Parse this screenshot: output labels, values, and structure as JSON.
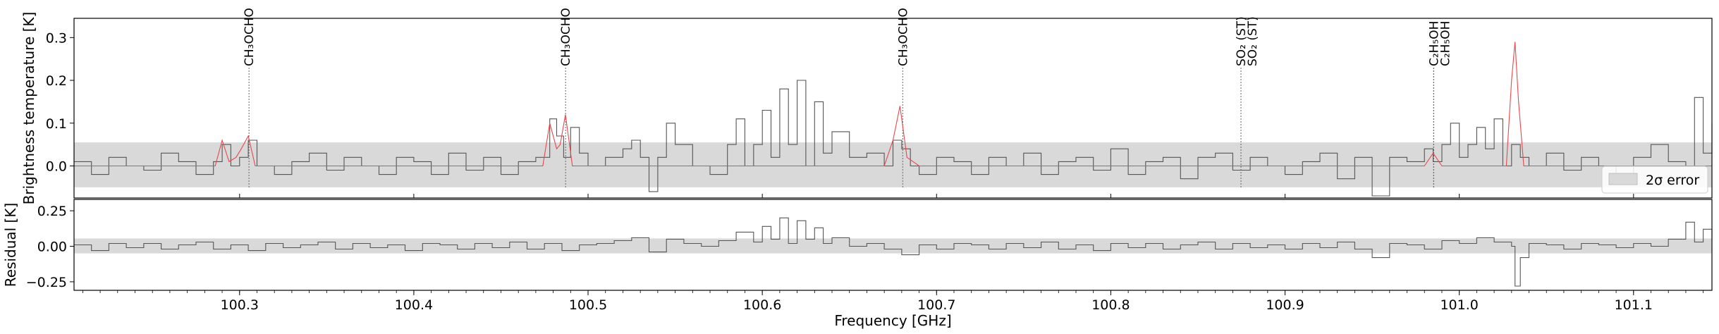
{
  "chart_data": [
    {
      "panel": "spectrum",
      "type": "line",
      "xlabel": "",
      "ylabel": "Brightness temperature [K]",
      "xlim": [
        100.205,
        101.145
      ],
      "ylim": [
        -0.075,
        0.345
      ],
      "yticks": [
        0.0,
        0.1,
        0.2,
        0.3
      ],
      "ytick_labels": [
        "0.0",
        "0.1",
        "0.2",
        "0.3"
      ],
      "error_band": {
        "label": "2σ error",
        "low": -0.05,
        "high": 0.055,
        "color": "#d9d9d9"
      },
      "legend": {
        "position": "bottom-right",
        "entries": [
          "2σ error"
        ]
      },
      "series": [
        {
          "role": "observed",
          "style": "steps",
          "color": "#555555",
          "x": [
            100.205,
            100.215,
            100.225,
            100.235,
            100.245,
            100.255,
            100.265,
            100.275,
            100.285,
            100.29,
            100.295,
            100.3,
            100.305,
            100.31,
            100.32,
            100.33,
            100.34,
            100.35,
            100.36,
            100.37,
            100.38,
            100.39,
            100.4,
            100.41,
            100.42,
            100.43,
            100.44,
            100.45,
            100.46,
            100.47,
            100.478,
            100.482,
            100.486,
            100.49,
            100.495,
            100.5,
            100.51,
            100.52,
            100.525,
            100.53,
            100.535,
            100.54,
            100.545,
            100.55,
            100.56,
            100.57,
            100.58,
            100.585,
            100.59,
            100.595,
            100.6,
            100.605,
            100.61,
            100.615,
            100.62,
            100.625,
            100.63,
            100.635,
            100.64,
            100.65,
            100.66,
            100.67,
            100.675,
            100.68,
            100.685,
            100.69,
            100.7,
            100.71,
            100.72,
            100.73,
            100.74,
            100.75,
            100.76,
            100.77,
            100.78,
            100.79,
            100.8,
            100.81,
            100.82,
            100.83,
            100.84,
            100.85,
            100.86,
            100.87,
            100.88,
            100.89,
            100.9,
            100.91,
            100.92,
            100.93,
            100.94,
            100.95,
            100.96,
            100.97,
            100.98,
            100.985,
            100.99,
            100.995,
            101.0,
            101.005,
            101.01,
            101.015,
            101.02,
            101.025,
            101.03,
            101.035,
            101.04,
            101.05,
            101.06,
            101.07,
            101.08,
            101.09,
            101.1,
            101.11,
            101.12,
            101.13,
            101.135,
            101.14,
            101.145
          ],
          "y": [
            0.01,
            -0.02,
            0.02,
            0.0,
            -0.01,
            0.03,
            0.01,
            -0.02,
            0.01,
            0.05,
            0.0,
            0.02,
            0.06,
            0.0,
            -0.02,
            0.01,
            0.03,
            -0.01,
            0.02,
            0.0,
            -0.02,
            0.02,
            0.01,
            -0.02,
            0.03,
            -0.01,
            0.02,
            -0.02,
            0.01,
            0.02,
            0.11,
            0.07,
            0.02,
            0.09,
            0.03,
            0.0,
            0.02,
            0.04,
            0.06,
            0.02,
            -0.06,
            0.02,
            0.1,
            0.05,
            0.0,
            -0.02,
            0.05,
            0.11,
            0.0,
            0.05,
            0.13,
            0.02,
            0.18,
            0.05,
            0.2,
            0.0,
            0.15,
            0.03,
            0.08,
            0.02,
            0.03,
            0.0,
            0.06,
            0.04,
            0.0,
            -0.02,
            0.02,
            0.01,
            -0.02,
            0.02,
            0.0,
            0.03,
            -0.02,
            0.01,
            0.02,
            -0.01,
            0.04,
            -0.02,
            0.01,
            0.02,
            -0.03,
            0.02,
            0.03,
            -0.01,
            0.02,
            0.0,
            -0.02,
            0.01,
            0.03,
            -0.03,
            0.02,
            -0.07,
            0.02,
            0.01,
            0.04,
            0.01,
            0.05,
            0.1,
            0.02,
            0.05,
            0.09,
            0.04,
            0.11,
            0.0,
            0.05,
            0.02,
            0.0,
            0.03,
            -0.01,
            0.02,
            0.0,
            -0.02,
            0.02,
            0.05,
            0.01,
            0.0,
            0.16,
            0.03,
            0.1
          ]
        },
        {
          "role": "model",
          "style": "line",
          "color": "#e8474b",
          "x": [
            100.205,
            100.286,
            100.29,
            100.294,
            100.298,
            100.301,
            100.305,
            100.309,
            100.4,
            100.474,
            100.478,
            100.482,
            100.484,
            100.487,
            100.491,
            100.5,
            100.67,
            100.675,
            100.679,
            100.683,
            100.69,
            100.98,
            100.985,
            100.99,
            101.0,
            101.027,
            101.03,
            101.032,
            101.034,
            101.037,
            101.04,
            101.145
          ],
          "y": [
            0.0,
            0.0,
            0.06,
            0.01,
            0.02,
            0.04,
            0.07,
            0.0,
            0.0,
            0.0,
            0.1,
            0.04,
            0.05,
            0.12,
            0.0,
            0.0,
            0.0,
            0.06,
            0.14,
            0.02,
            0.0,
            0.0,
            0.03,
            0.0,
            0.0,
            0.0,
            0.2,
            0.29,
            0.15,
            0.0,
            0.0,
            0.0
          ]
        }
      ],
      "line_markers": [
        {
          "label": "CH₃OCHO",
          "x": 100.3054
        },
        {
          "label": "CH₃OCHO",
          "x": 100.4871
        },
        {
          "label": "CH₃OCHO",
          "x": 100.6806
        },
        {
          "label": "SO₂ (ST)",
          "x": 100.8747
        },
        {
          "label": "SO₂ (ST)",
          "x": 100.8747
        },
        {
          "label": "C₂H₅OH",
          "x": 100.9853
        },
        {
          "label": "C₂H₅OH",
          "x": 100.9853
        }
      ]
    },
    {
      "panel": "residual",
      "type": "line",
      "xlabel": "Frequency [GHz]",
      "ylabel": "Residual [K]",
      "xlim": [
        100.205,
        101.145
      ],
      "ylim": [
        -0.31,
        0.33
      ],
      "yticks": [
        -0.25,
        0.0,
        0.25
      ],
      "ytick_labels": [
        "−0.25",
        "0.00",
        "0.25"
      ],
      "xticks": [
        100.3,
        100.4,
        100.5,
        100.6,
        100.7,
        100.8,
        100.9,
        101.0,
        101.1
      ],
      "xtick_labels": [
        "100.3",
        "100.4",
        "100.5",
        "100.6",
        "100.7",
        "100.8",
        "100.9",
        "101.0",
        "101.1"
      ],
      "error_band": {
        "low": -0.05,
        "high": 0.055,
        "color": "#d9d9d9"
      },
      "series": [
        {
          "role": "residual",
          "style": "steps",
          "color": "#555555",
          "x": [
            100.205,
            100.215,
            100.225,
            100.235,
            100.245,
            100.255,
            100.265,
            100.275,
            100.285,
            100.295,
            100.305,
            100.315,
            100.325,
            100.335,
            100.345,
            100.355,
            100.365,
            100.375,
            100.385,
            100.395,
            100.405,
            100.415,
            100.425,
            100.435,
            100.445,
            100.455,
            100.465,
            100.475,
            100.485,
            100.495,
            100.505,
            100.515,
            100.525,
            100.535,
            100.545,
            100.555,
            100.565,
            100.575,
            100.585,
            100.595,
            100.6,
            100.605,
            100.61,
            100.615,
            100.62,
            100.625,
            100.63,
            100.635,
            100.64,
            100.65,
            100.66,
            100.67,
            100.68,
            100.69,
            100.7,
            100.71,
            100.72,
            100.73,
            100.74,
            100.75,
            100.76,
            100.77,
            100.78,
            100.79,
            100.8,
            100.81,
            100.82,
            100.83,
            100.84,
            100.85,
            100.86,
            100.87,
            100.88,
            100.89,
            100.9,
            100.91,
            100.92,
            100.93,
            100.94,
            100.95,
            100.96,
            100.97,
            100.98,
            100.99,
            101.0,
            101.01,
            101.02,
            101.03,
            101.032,
            101.035,
            101.04,
            101.05,
            101.06,
            101.07,
            101.08,
            101.09,
            101.1,
            101.11,
            101.12,
            101.13,
            101.135,
            101.14,
            101.145
          ],
          "y": [
            0.01,
            -0.03,
            0.02,
            -0.01,
            0.02,
            -0.02,
            0.01,
            0.03,
            -0.02,
            0.01,
            -0.03,
            0.02,
            -0.01,
            0.01,
            0.03,
            -0.02,
            0.02,
            -0.01,
            0.01,
            -0.03,
            0.02,
            0.01,
            -0.02,
            0.02,
            -0.01,
            0.03,
            -0.02,
            0.02,
            -0.03,
            0.01,
            0.02,
            0.04,
            0.06,
            -0.04,
            0.05,
            0.02,
            0.0,
            0.04,
            0.1,
            0.03,
            0.14,
            0.05,
            0.2,
            0.02,
            0.18,
            0.05,
            0.13,
            0.02,
            0.06,
            0.0,
            0.02,
            -0.02,
            -0.06,
            0.01,
            -0.02,
            0.02,
            0.01,
            -0.02,
            0.02,
            -0.01,
            0.03,
            -0.02,
            0.01,
            -0.03,
            0.02,
            -0.01,
            0.02,
            -0.02,
            0.01,
            0.03,
            -0.02,
            0.02,
            -0.01,
            0.01,
            -0.02,
            0.02,
            -0.01,
            0.03,
            -0.02,
            -0.08,
            0.02,
            0.01,
            -0.02,
            0.04,
            0.02,
            0.06,
            0.03,
            0.0,
            -0.28,
            -0.08,
            0.02,
            0.01,
            -0.02,
            0.02,
            0.01,
            -0.01,
            0.02,
            0.0,
            0.05,
            0.17,
            0.03,
            0.12,
            0.04
          ]
        }
      ]
    }
  ]
}
